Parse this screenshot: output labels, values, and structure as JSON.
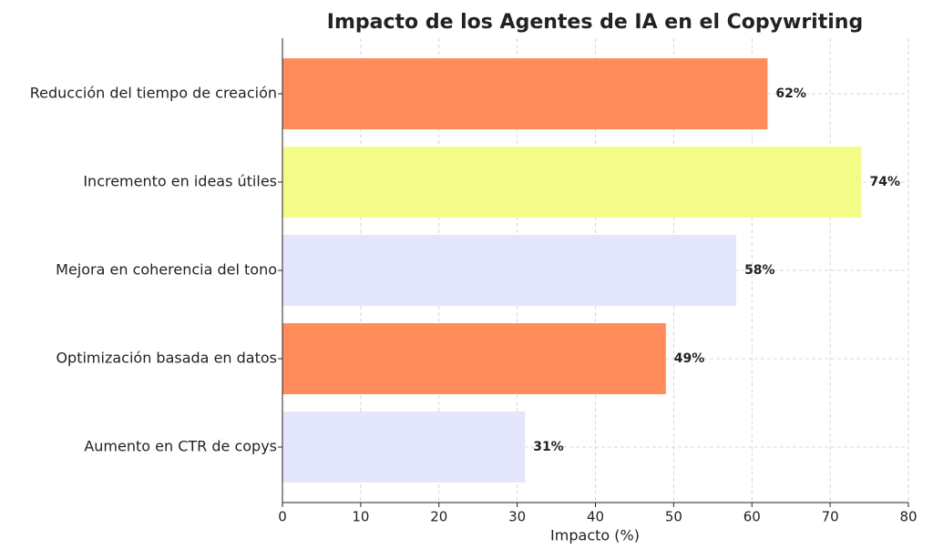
{
  "chart_data": {
    "type": "barh",
    "title": "Impacto de los Agentes de IA en el Copywriting",
    "x_label": "Impacto (%)",
    "categories": [
      "Reducción del tiempo de creación",
      "Incremento en ideas útiles",
      "Mejora en coherencia del tono",
      "Optimización basada en datos",
      "Aumento en CTR de copys"
    ],
    "values": [
      62,
      74,
      58,
      49,
      31
    ],
    "value_labels": [
      "62%",
      "74%",
      "58%",
      "49%",
      "31%"
    ],
    "colors": [
      "#ff8c5a",
      "#f3fc88",
      "#e4e6fb",
      "#ff8c5a",
      "#e4e6fb"
    ],
    "xlim": [
      0,
      80
    ],
    "xticks": [
      0,
      10,
      20,
      30,
      40,
      50,
      60,
      70,
      80
    ],
    "grid": true
  }
}
